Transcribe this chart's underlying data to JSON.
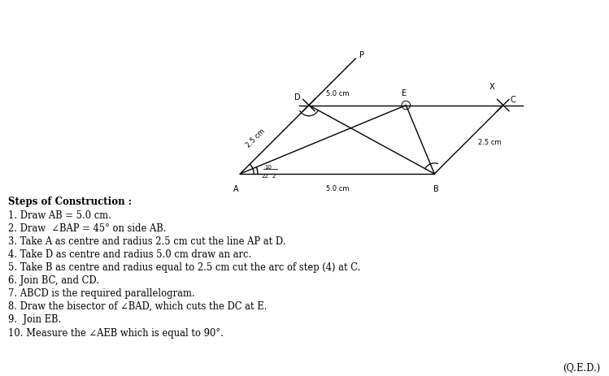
{
  "background_color": "#ffffff",
  "steps": [
    "Steps of Construction :",
    "1. Draw AB = 5.0 cm.",
    "2. Draw  ∠BAP = 45° on side AB.",
    "3. Take A as centre and radius 2.5 cm cut the line AP at D.",
    "4. Take D as centre and radius 5.0 cm draw an arc.",
    "5. Take B as centre and radius equal to 2.5 cm cut the arc of step (4) at C.",
    "6. Join BC, and CD.",
    "7. ABCD is the required parallelogram.",
    "8. Draw the bisector of ∠BAD, which cuts the DC at E.",
    "9.  Join EB.",
    "10. Measure the ∠AEB which is equal to 90°."
  ],
  "qed": "(Q.E.D.)"
}
